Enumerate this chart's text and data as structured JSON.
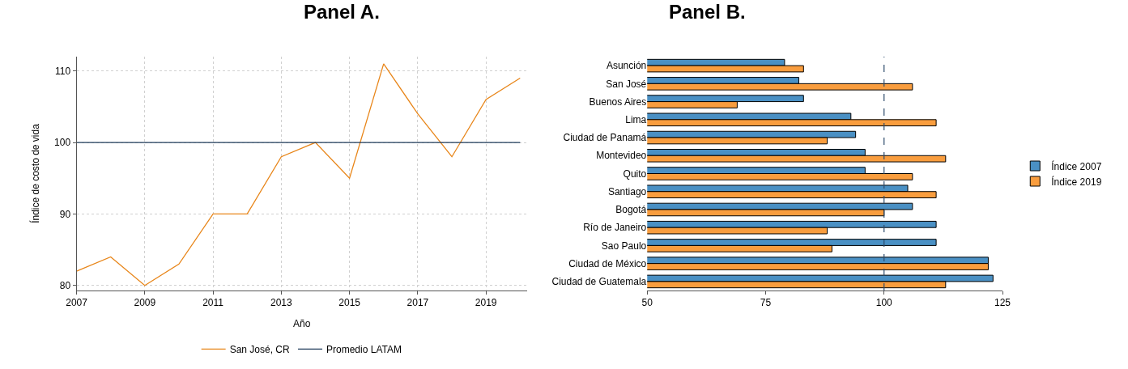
{
  "chart_data": [
    {
      "type": "line",
      "title": "Panel A.",
      "xlabel": "Año",
      "ylabel": "Índice de costo de vida",
      "x": [
        2007,
        2008,
        2009,
        2010,
        2011,
        2012,
        2013,
        2014,
        2015,
        2016,
        2017,
        2018,
        2019,
        2020
      ],
      "series": [
        {
          "name": "San José, CR",
          "color": "#e8861a",
          "values": [
            82,
            84,
            80,
            83,
            90,
            90,
            98,
            100,
            95,
            111,
            104,
            98,
            106,
            109
          ]
        },
        {
          "name": "Promedio LATAM",
          "color": "#1f3b5a",
          "values": [
            100,
            100,
            100,
            100,
            100,
            100,
            100,
            100,
            100,
            100,
            100,
            100,
            100,
            100
          ]
        }
      ],
      "xlim": [
        2007,
        2020.2
      ],
      "xticks": [
        2007,
        2009,
        2011,
        2013,
        2015,
        2017,
        2019
      ],
      "ylim": [
        79.3,
        112
      ],
      "yticks": [
        80,
        90,
        100,
        110
      ],
      "grid": true,
      "legend": "bottom",
      "marker": "none",
      "line_style": "solid"
    },
    {
      "type": "bar",
      "orientation": "horizontal",
      "title": "Panel B.",
      "categories": [
        "Asunción",
        "San José",
        "Buenos Aires",
        "Lima",
        "Ciudad de Panamá",
        "Montevideo",
        "Quito",
        "Santiago",
        "Bogotá",
        "Río de Janeiro",
        "Sao Paulo",
        "Ciudad de México",
        "Ciudad de Guatemala"
      ],
      "series": [
        {
          "name": "Índice 2007",
          "color": "#4a90c4",
          "values": [
            79,
            82,
            83,
            93,
            94,
            96,
            96,
            105,
            106,
            111,
            111,
            122,
            123
          ]
        },
        {
          "name": "Índice 2019",
          "color": "#f99d3e",
          "values": [
            83,
            106,
            69,
            111,
            88,
            113,
            106,
            111,
            100,
            88,
            89,
            122,
            113
          ]
        }
      ],
      "xlim": [
        50,
        125
      ],
      "xticks": [
        50,
        75,
        100,
        125
      ],
      "ref_lines": [
        {
          "axis": "x",
          "value": 100,
          "color": "#2d4a6b",
          "line_style": "dashed"
        }
      ],
      "grid": false,
      "legend": "right"
    }
  ]
}
